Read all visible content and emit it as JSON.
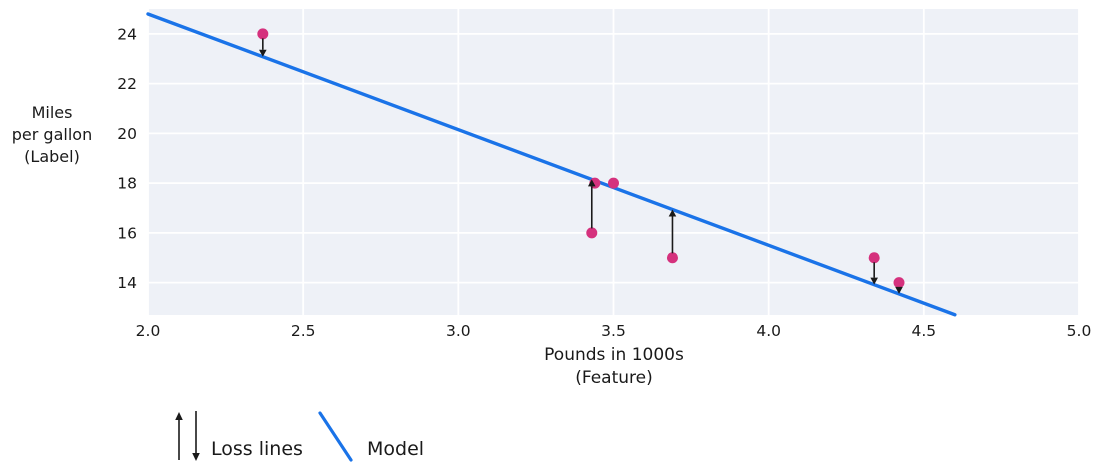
{
  "chart_data": {
    "type": "scatter",
    "title": "",
    "xlabel": "Pounds in 1000s (Feature)",
    "xlabel_lines": [
      "Pounds in 1000s",
      "(Feature)"
    ],
    "ylabel": "Miles per gallon (Label)",
    "ylabel_lines": [
      "Miles",
      "per gallon",
      "(Label)"
    ],
    "xlim": [
      2.0,
      5.0
    ],
    "ylim": [
      12.7,
      25.0
    ],
    "xticks": [
      2.0,
      2.5,
      3.0,
      3.5,
      4.0,
      4.5,
      5.0
    ],
    "xtick_labels": [
      "2.0",
      "2.5",
      "3.0",
      "3.5",
      "4.0",
      "4.5",
      "5.0"
    ],
    "yticks": [
      14,
      16,
      18,
      20,
      22,
      24
    ],
    "ytick_labels": [
      "14",
      "16",
      "18",
      "20",
      "22",
      "24"
    ],
    "grid": true,
    "legend_position": "bottom-left",
    "points": [
      {
        "x": 2.37,
        "y": 24,
        "loss_arrow": "down"
      },
      {
        "x": 3.43,
        "y": 16,
        "loss_arrow": "up"
      },
      {
        "x": 3.44,
        "y": 18,
        "loss_arrow": "none"
      },
      {
        "x": 3.5,
        "y": 18,
        "loss_arrow": "none"
      },
      {
        "x": 3.69,
        "y": 15,
        "loss_arrow": "up"
      },
      {
        "x": 4.34,
        "y": 15,
        "loss_arrow": "down"
      },
      {
        "x": 4.42,
        "y": 14,
        "loss_arrow": "down"
      }
    ],
    "model_line": {
      "slope": -4.65,
      "intercept": 34.1,
      "x_start": 2.0,
      "x_end": 4.6
    },
    "legend": [
      {
        "label": "Loss lines",
        "symbol": "arrows"
      },
      {
        "label": "Model",
        "symbol": "line"
      }
    ],
    "colors": {
      "point": "#d5317d",
      "model": "#1a73e8",
      "plot_bg": "#eef1f7",
      "grid": "#ffffff",
      "text": "#1a1a1a",
      "loss_arrow": "#1a1a1a"
    }
  }
}
